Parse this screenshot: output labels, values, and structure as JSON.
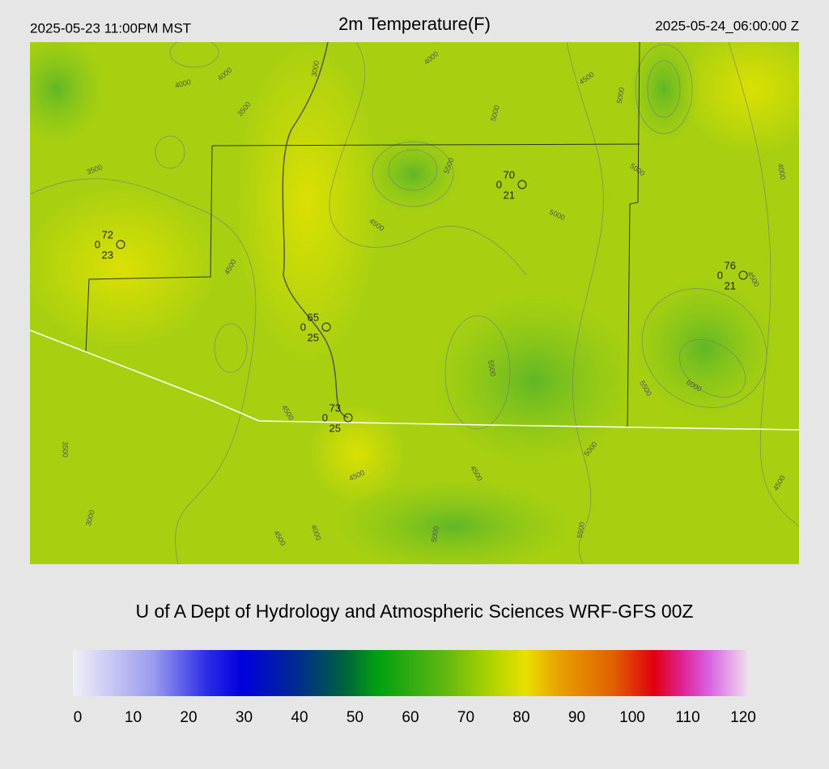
{
  "header": {
    "local_time": "2025-05-23 11:00PM MST",
    "title": "2m Temperature(F)",
    "valid_time": "2025-05-24_06:00:00 Z"
  },
  "map": {
    "contour_labels": [
      "4000",
      "4000",
      "4000",
      "3000",
      "3500",
      "4500",
      "5000",
      "5000",
      "3500",
      "5500",
      "5000",
      "4000",
      "4500",
      "5000",
      "4500",
      "4500",
      "5500",
      "5500",
      "6000",
      "4500",
      "3500",
      "5000",
      "4500",
      "4500",
      "4500",
      "3000",
      "4000",
      "4500",
      "5000",
      "5500"
    ],
    "stations": [
      {
        "temperature": "72",
        "wind": "0",
        "dewpoint": "23"
      },
      {
        "temperature": "70",
        "wind": "0",
        "dewpoint": "21"
      },
      {
        "temperature": "76",
        "wind": "0",
        "dewpoint": "21"
      },
      {
        "temperature": "65",
        "wind": "0",
        "dewpoint": "25"
      },
      {
        "temperature": "73",
        "wind": "0",
        "dewpoint": "25"
      }
    ]
  },
  "footer": "U of A Dept of Hydrology and Atmospheric Sciences WRF-GFS 00Z",
  "colorbar": {
    "ticks": [
      0,
      10,
      20,
      30,
      40,
      50,
      60,
      70,
      80,
      90,
      100,
      110,
      120
    ]
  }
}
